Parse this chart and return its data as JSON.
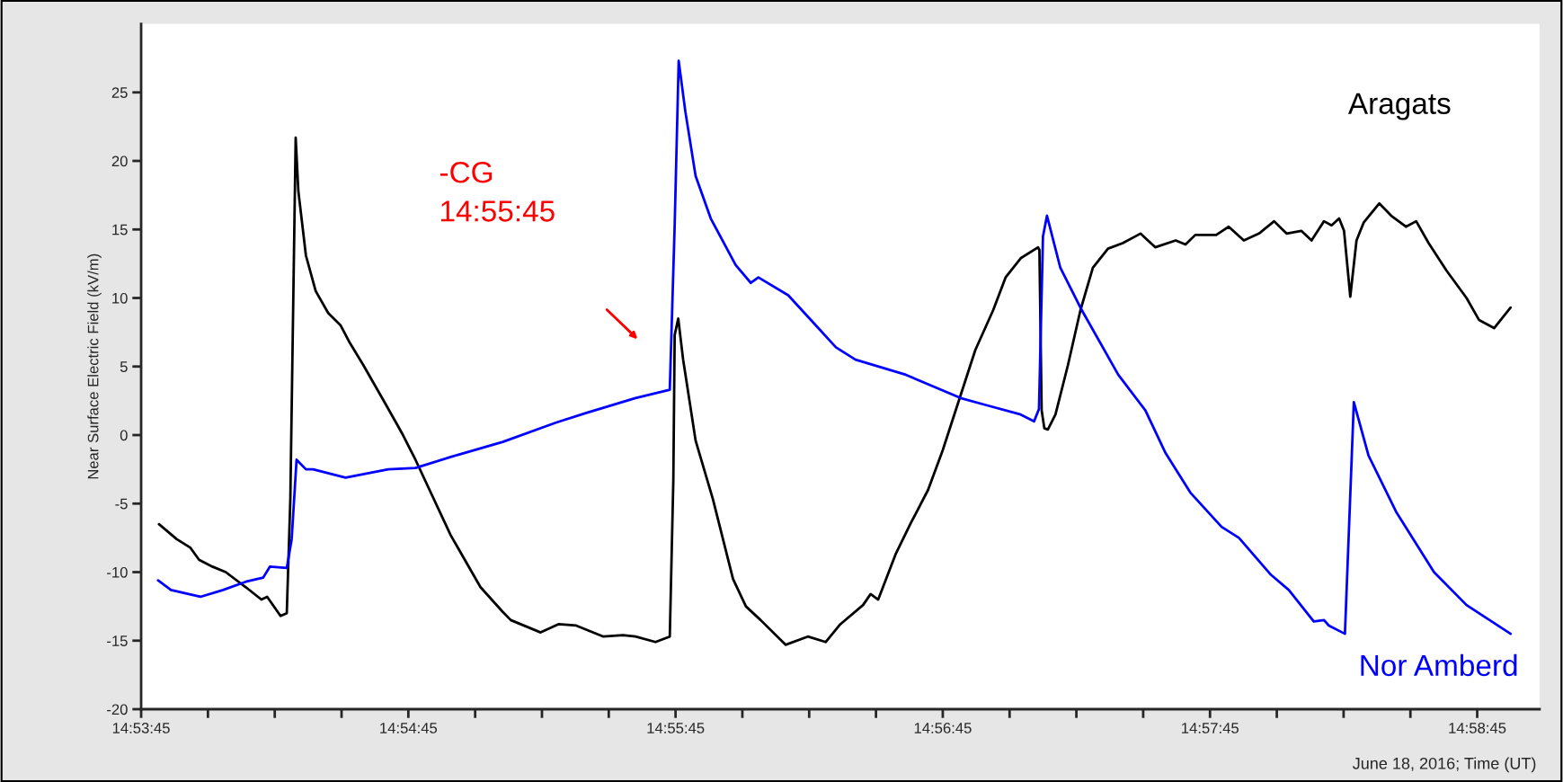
{
  "chart_data": {
    "type": "line",
    "ylabel": "Near Surface Electric Field (kV/m)",
    "xlabel": "June 18, 2016; Time (UT)",
    "xlim": [
      "2016-06-18T14:53:45",
      "2016-06-18T14:58:59"
    ],
    "xticks": [
      {
        "value": "2016-06-18T14:53:45",
        "label": "14:53:45"
      },
      {
        "value": "2016-06-18T14:54:00",
        "label": null
      },
      {
        "value": "2016-06-18T14:54:15",
        "label": null
      },
      {
        "value": "2016-06-18T14:54:30",
        "label": null
      },
      {
        "value": "2016-06-18T14:54:45",
        "label": "14:54:45"
      },
      {
        "value": "2016-06-18T14:55:00",
        "label": null
      },
      {
        "value": "2016-06-18T14:55:15",
        "label": null
      },
      {
        "value": "2016-06-18T14:55:30",
        "label": null
      },
      {
        "value": "2016-06-18T14:55:45",
        "label": "14:55:45"
      },
      {
        "value": "2016-06-18T14:56:00",
        "label": null
      },
      {
        "value": "2016-06-18T14:56:15",
        "label": null
      },
      {
        "value": "2016-06-18T14:56:30",
        "label": null
      },
      {
        "value": "2016-06-18T14:56:45",
        "label": "14:56:45"
      },
      {
        "value": "2016-06-18T14:57:00",
        "label": null
      },
      {
        "value": "2016-06-18T14:57:15",
        "label": null
      },
      {
        "value": "2016-06-18T14:57:30",
        "label": null
      },
      {
        "value": "2016-06-18T14:57:45",
        "label": "14:57:45"
      },
      {
        "value": "2016-06-18T14:58:00",
        "label": null
      },
      {
        "value": "2016-06-18T14:58:15",
        "label": null
      },
      {
        "value": "2016-06-18T14:58:30",
        "label": null
      },
      {
        "value": "2016-06-18T14:58:45",
        "label": "14:58:45"
      }
    ],
    "ylim": [
      -20,
      30
    ],
    "yticks": [
      -20,
      -15,
      -10,
      -5,
      0,
      5,
      10,
      15,
      20,
      25
    ],
    "grid": false,
    "legend": false,
    "marker": "none",
    "line_style": "solid",
    "annotations": [
      "-CG\n14:55:45"
    ],
    "series": [
      {
        "name": "Aragats",
        "color": "#000000",
        "x": [
          "2016-06-18T14:53:49",
          "2016-06-18T14:53:53",
          "2016-06-18T14:53:56",
          "2016-06-18T14:53:58",
          "2016-06-18T14:54:01",
          "2016-06-18T14:54:04",
          "2016-06-18T14:54:08.5",
          "2016-06-18T14:54:12",
          "2016-06-18T14:54:13.3",
          "2016-06-18T14:54:16.3",
          "2016-06-18T14:54:17.7",
          "2016-06-18T14:54:18.5",
          "2016-06-18T14:54:19.7",
          "2016-06-18T14:54:20.3",
          "2016-06-18T14:54:22",
          "2016-06-18T14:54:24.2",
          "2016-06-18T14:54:27",
          "2016-06-18T14:54:29.8",
          "2016-06-18T14:54:31.9",
          "2016-06-18T14:54:34.9",
          "2016-06-18T14:54:40",
          "2016-06-18T14:54:43.8",
          "2016-06-18T14:54:46.6",
          "2016-06-18T14:54:54.5",
          "2016-06-18T14:55:01.2",
          "2016-06-18T14:55:06.2",
          "2016-06-18T14:55:08",
          "2016-06-18T14:55:14.7",
          "2016-06-18T14:55:18.7",
          "2016-06-18T14:55:22.7",
          "2016-06-18T14:55:28.8",
          "2016-06-18T14:55:33.2",
          "2016-06-18T14:55:36",
          "2016-06-18T14:55:40.5",
          "2016-06-18T14:55:43.7",
          "2016-06-18T14:55:44.5",
          "2016-06-18T14:55:44.8",
          "2016-06-18T14:55:45.6",
          "2016-06-18T14:55:46.7",
          "2016-06-18T14:55:49.5",
          "2016-06-18T14:55:53.4",
          "2016-06-18T14:55:57.9",
          "2016-06-18T14:56:00.8",
          "2016-06-18T14:56:04.1",
          "2016-06-18T14:56:09.7",
          "2016-06-18T14:56:14.7",
          "2016-06-18T14:56:18.7",
          "2016-06-18T14:56:22",
          "2016-06-18T14:56:27.1",
          "2016-06-18T14:56:28.8",
          "2016-06-18T14:56:30.5",
          "2016-06-18T14:56:34.4",
          "2016-06-18T14:56:37.7",
          "2016-06-18T14:56:41.7",
          "2016-06-18T14:56:45",
          "2016-06-18T14:56:49",
          "2016-06-18T14:56:52.3",
          "2016-06-18T14:56:56.3",
          "2016-06-18T14:56:59.1",
          "2016-06-18T14:57:02.5",
          "2016-06-18T14:57:06.4",
          "2016-06-18T14:57:06.7",
          "2016-06-18T14:57:07.2",
          "2016-06-18T14:57:07.8",
          "2016-06-18T14:57:08.6",
          "2016-06-18T14:57:10.3",
          "2016-06-18T14:57:13.1",
          "2016-06-18T14:57:15.9",
          "2016-06-18T14:57:18.7",
          "2016-06-18T14:57:22.1",
          "2016-06-18T14:57:25.4",
          "2016-06-18T14:57:29.4",
          "2016-06-18T14:57:32.7",
          "2016-06-18T14:57:37.3",
          "2016-06-18T14:57:39.5",
          "2016-06-18T14:57:41.7",
          "2016-06-18T14:57:46.4",
          "2016-06-18T14:57:49.2",
          "2016-06-18T14:57:52.6",
          "2016-06-18T14:57:56",
          "2016-06-18T14:57:59.4",
          "2016-06-18T14:58:02.2",
          "2016-06-18T14:58:05.5",
          "2016-06-18T14:58:07.8",
          "2016-06-18T14:58:10.6",
          "2016-06-18T14:58:12.3",
          "2016-06-18T14:58:14",
          "2016-06-18T14:58:15.1",
          "2016-06-18T14:58:16.5",
          "2016-06-18T14:58:17.9",
          "2016-06-18T14:58:19.5",
          "2016-06-18T14:58:23",
          "2016-06-18T14:58:25.7",
          "2016-06-18T14:58:29",
          "2016-06-18T14:58:31.3",
          "2016-06-18T14:58:34.1",
          "2016-06-18T14:58:38.1",
          "2016-06-18T14:58:42.6",
          "2016-06-18T14:58:45.4",
          "2016-06-18T14:58:48.8",
          "2016-06-18T14:58:52.5"
        ],
        "values": [
          -6.5,
          -7.6,
          -8.2,
          -9.1,
          -9.6,
          -10,
          -11.1,
          -12,
          -11.8,
          -13.2,
          -13,
          -4.7,
          21.7,
          17.8,
          13.1,
          10.5,
          8.9,
          8,
          6.7,
          5.1,
          2.2,
          0,
          -1.8,
          -7.3,
          -11.1,
          -12.9,
          -13.5,
          -14.4,
          -13.8,
          -13.9,
          -14.7,
          -14.6,
          -14.7,
          -15.1,
          -14.7,
          -3.3,
          7.3,
          8.5,
          5.5,
          -0.4,
          -4.7,
          -10.5,
          -12.5,
          -13.5,
          -15.3,
          -14.7,
          -15.1,
          -13.8,
          -12.4,
          -11.6,
          -12,
          -8.7,
          -6.5,
          -4,
          -1.1,
          2.9,
          6.2,
          9.1,
          11.5,
          12.9,
          13.7,
          13.5,
          1.8,
          0.5,
          0.4,
          1.5,
          5.1,
          9.1,
          12.2,
          13.6,
          14,
          14.7,
          13.7,
          14.2,
          13.9,
          14.6,
          14.6,
          15.2,
          14.2,
          14.7,
          15.6,
          14.7,
          14.9,
          14.2,
          15.6,
          15.3,
          15.8,
          14.9,
          10.1,
          14.2,
          15.5,
          16.9,
          16,
          15.2,
          15.6,
          14,
          12,
          10,
          8.4,
          7.8,
          9.3
        ]
      },
      {
        "name": "Nor Amberd",
        "color": "#0000ff",
        "x": [
          "2016-06-18T14:53:48.8",
          "2016-06-18T14:53:51.7",
          "2016-06-18T14:53:58.3",
          "2016-06-18T14:54:03.4",
          "2016-06-18T14:54:08.5",
          "2016-06-18T14:54:12.4",
          "2016-06-18T14:54:13.9",
          "2016-06-18T14:54:17.7",
          "2016-06-18T14:54:18.8",
          "2016-06-18T14:54:19.9",
          "2016-06-18T14:54:22",
          "2016-06-18T14:54:23.6",
          "2016-06-18T14:54:30.9",
          "2016-06-18T14:54:40.5",
          "2016-06-18T14:54:46.6",
          "2016-06-18T14:54:54.5",
          "2016-06-18T14:55:06.2",
          "2016-06-18T14:55:18.1",
          "2016-06-18T14:55:24.8",
          "2016-06-18T14:55:36",
          "2016-06-18T14:55:43.7",
          "2016-06-18T14:55:44.8",
          "2016-06-18T14:55:45.7",
          "2016-06-18T14:55:47.2",
          "2016-06-18T14:55:49.5",
          "2016-06-18T14:55:52.9",
          "2016-06-18T14:55:58.5",
          "2016-06-18T14:56:01.9",
          "2016-06-18T14:56:03.6",
          "2016-06-18T14:56:10.3",
          "2016-06-18T14:56:16.5",
          "2016-06-18T14:56:21",
          "2016-06-18T14:56:25.4",
          "2016-06-18T14:56:36.7",
          "2016-06-18T14:56:49",
          "2016-06-18T14:56:54.6",
          "2016-06-18T14:57:02.5",
          "2016-06-18T14:57:05.5",
          "2016-06-18T14:57:06.6",
          "2016-06-18T14:57:07.5",
          "2016-06-18T14:57:08.4",
          "2016-06-18T14:57:11.4",
          "2016-06-18T14:57:15.9",
          "2016-06-18T14:57:24.4",
          "2016-06-18T14:57:30.5",
          "2016-06-18T14:57:35",
          "2016-06-18T14:57:40.6",
          "2016-06-18T14:57:47.6",
          "2016-06-18T14:57:51.5",
          "2016-06-18T14:57:58.7",
          "2016-06-18T14:58:02.7",
          "2016-06-18T14:58:08.3",
          "2016-06-18T14:58:10.6",
          "2016-06-18T14:58:11.7",
          "2016-06-18T14:58:15.3",
          "2016-06-18T14:58:17.3",
          "2016-06-18T14:58:20.6",
          "2016-06-18T14:58:26.8",
          "2016-06-18T14:58:35.3",
          "2016-06-18T14:58:42.6",
          "2016-06-18T14:58:52.5"
        ],
        "values": [
          -10.6,
          -11.3,
          -11.8,
          -11.3,
          -10.7,
          -10.4,
          -9.6,
          -9.7,
          -7.6,
          -1.8,
          -2.5,
          -2.5,
          -3.1,
          -2.5,
          -2.4,
          -1.6,
          -0.5,
          0.9,
          1.6,
          2.7,
          3.3,
          15.3,
          27.3,
          23.6,
          18.9,
          15.8,
          12.4,
          11.1,
          11.5,
          10.2,
          8,
          6.4,
          5.5,
          4.4,
          2.7,
          2.2,
          1.5,
          1,
          1.9,
          14.5,
          16,
          12.2,
          9.3,
          4.4,
          1.8,
          -1.3,
          -4.2,
          -6.7,
          -7.5,
          -10.2,
          -11.3,
          -13.6,
          -13.5,
          -13.9,
          -14.5,
          2.4,
          -1.5,
          -5.6,
          -10,
          -12.4,
          -14.5
        ]
      }
    ]
  }
}
